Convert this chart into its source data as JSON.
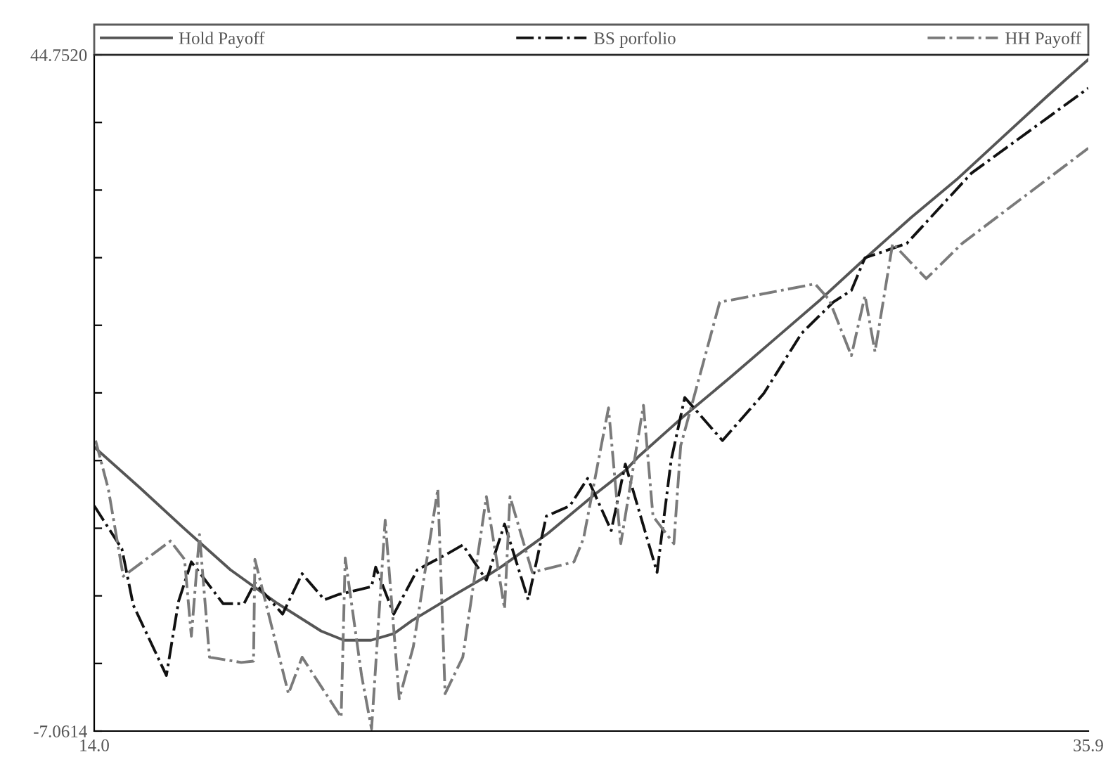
{
  "chart_data": {
    "type": "line",
    "xlim": [
      14.0,
      35.9
    ],
    "xticks": [
      {
        "value": 14.0,
        "label": "14.0"
      },
      {
        "value": 35.9,
        "label": "35.9"
      }
    ],
    "ylim": [
      -7.0614,
      44.752
    ],
    "yticks": [
      {
        "value": -7.0614,
        "label": "-7.0614"
      },
      {
        "value": -1.88,
        "label": null
      },
      {
        "value": 3.3,
        "label": null
      },
      {
        "value": 8.48,
        "label": null
      },
      {
        "value": 13.66,
        "label": null
      },
      {
        "value": 18.85,
        "label": null
      },
      {
        "value": 24.03,
        "label": null
      },
      {
        "value": 29.21,
        "label": null
      },
      {
        "value": 34.39,
        "label": null
      },
      {
        "value": 39.57,
        "label": null
      },
      {
        "value": 44.752,
        "label": "44.7520"
      }
    ],
    "grid": false,
    "legend": "top",
    "marker": "none",
    "series": [
      {
        "name": "Hold Payoff",
        "color": "#555555",
        "line_style": "solid",
        "x": [
          14.0,
          15.0,
          16.0,
          17.0,
          18.0,
          19.0,
          19.5,
          20.1,
          20.6,
          21.0,
          22.0,
          22.64,
          23.0,
          24.0,
          25.0,
          25.7,
          26.0,
          27.0,
          28.0,
          29.0,
          30.0,
          31.0,
          32.0,
          33.0,
          34.0,
          35.0,
          35.9
        ],
        "values": [
          14.7,
          11.6,
          8.4,
          5.3,
          2.8,
          0.6,
          -0.1,
          -0.1,
          0.4,
          1.4,
          3.5,
          4.8,
          5.6,
          8.1,
          11.0,
          12.9,
          14.0,
          17.1,
          20.0,
          23.0,
          26.0,
          29.2,
          32.3,
          35.2,
          38.4,
          41.6,
          44.4
        ]
      },
      {
        "name": "BS porfolio",
        "color": "#111111",
        "line_style": "dashdot",
        "x": [
          14.0,
          14.61,
          14.86,
          15.59,
          15.86,
          16.14,
          16.84,
          17.3,
          17.54,
          18.15,
          18.58,
          19.07,
          19.38,
          20.11,
          20.2,
          20.6,
          21.12,
          21.82,
          22.12,
          22.64,
          23.04,
          23.56,
          23.96,
          24.48,
          24.87,
          25.39,
          25.7,
          26.4,
          26.71,
          27.01,
          27.84,
          28.75,
          29.58,
          30.28,
          30.68,
          30.98,
          31.9,
          33.33,
          35.9
        ],
        "values": [
          10.2,
          6.9,
          2.6,
          -2.8,
          2.9,
          5.9,
          2.7,
          2.7,
          4.3,
          1.9,
          5.0,
          3.0,
          3.4,
          4.0,
          5.5,
          1.9,
          5.3,
          6.6,
          7.2,
          4.5,
          8.8,
          3.0,
          9.4,
          10.2,
          12.3,
          8.3,
          13.4,
          5.1,
          13.7,
          18.5,
          15.2,
          18.8,
          23.4,
          25.8,
          26.7,
          29.2,
          30.3,
          35.7,
          42.2
        ]
      },
      {
        "name": "HH Payoff",
        "color": "#7a7a7a",
        "line_style": "dashdot",
        "x": [
          14.03,
          14.31,
          14.64,
          15.68,
          15.99,
          16.14,
          16.32,
          16.54,
          17.24,
          17.51,
          17.54,
          18.28,
          18.58,
          19.44,
          19.53,
          19.89,
          20.11,
          20.41,
          20.72,
          21.03,
          21.57,
          21.73,
          22.12,
          22.64,
          23.04,
          23.16,
          23.65,
          24.57,
          24.78,
          25.33,
          25.6,
          26.1,
          26.31,
          26.77,
          26.92,
          27.78,
          29.88,
          30.19,
          30.68,
          30.98,
          31.2,
          31.59,
          32.33,
          33.12,
          35.9
        ],
        "values": [
          15.2,
          11.5,
          4.8,
          7.5,
          6.1,
          0.2,
          8.0,
          -1.4,
          -1.8,
          -1.7,
          6.1,
          -4.2,
          -1.4,
          -6.0,
          6.2,
          -2.8,
          -6.9,
          9.1,
          -4.6,
          -0.6,
          11.5,
          -4.2,
          -1.4,
          10.9,
          2.3,
          10.9,
          5.1,
          5.9,
          7.7,
          17.7,
          7.3,
          17.9,
          9.4,
          7.3,
          14.8,
          25.8,
          27.2,
          26.0,
          21.7,
          26.3,
          22.0,
          30.3,
          27.6,
          30.3,
          37.6
        ]
      }
    ]
  }
}
